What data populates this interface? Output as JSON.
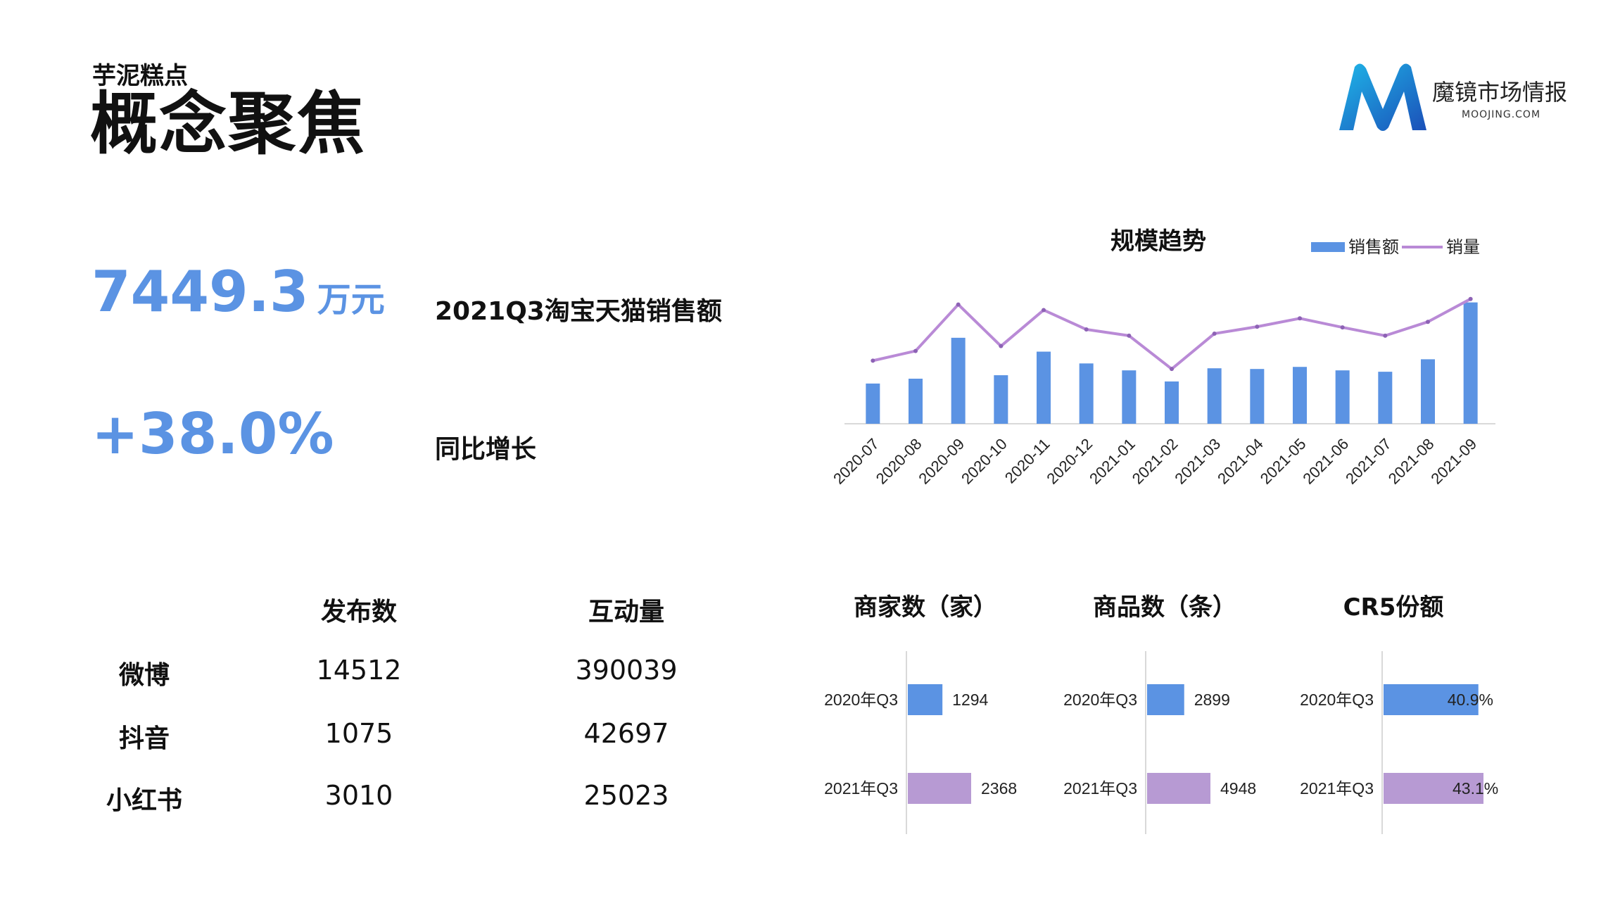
{
  "header": {
    "subtitle": "芋泥糕点",
    "title": "概念聚焦"
  },
  "logo": {
    "name": "魔镜市场情报",
    "domain": "MOOJING.COM"
  },
  "kpis": {
    "sales_value": "7449.3",
    "sales_unit": "万元",
    "sales_label": "2021Q3淘宝天猫销售额",
    "growth_value": "+38.0%",
    "growth_label": "同比增长"
  },
  "social_table": {
    "headers": [
      "发布数",
      "互动量"
    ],
    "rows": [
      {
        "platform": "微博",
        "posts": "14512",
        "interactions": "390039"
      },
      {
        "platform": "抖音",
        "posts": "1075",
        "interactions": "42697"
      },
      {
        "platform": "小红书",
        "posts": "3010",
        "interactions": "25023"
      }
    ]
  },
  "colors": {
    "blue": "#5b93e3",
    "purple": "#b79ad3",
    "line": "#b98ad6",
    "axis": "#d9d9d9"
  },
  "chart_data": [
    {
      "type": "bar",
      "title": "规模趋势",
      "categories": [
        "2020-07",
        "2020-08",
        "2020-09",
        "2020-10",
        "2020-11",
        "2020-12",
        "2021-01",
        "2021-02",
        "2021-03",
        "2021-04",
        "2021-05",
        "2021-06",
        "2021-07",
        "2021-08",
        "2021-09"
      ],
      "series": [
        {
          "name": "销售额",
          "kind": "bar",
          "values": [
            58,
            65,
            124,
            70,
            104,
            87,
            77,
            61,
            80,
            79,
            82,
            77,
            75,
            93,
            175
          ]
        },
        {
          "name": "销量",
          "kind": "line",
          "values": [
            91,
            105,
            172,
            112,
            164,
            136,
            127,
            79,
            130,
            140,
            152,
            139,
            127,
            147,
            180
          ]
        }
      ],
      "ylim": [
        0,
        200
      ],
      "legend": "top-right",
      "grid": false
    },
    {
      "type": "bar",
      "orientation": "horizontal",
      "title": "商家数（家）",
      "categories": [
        "2020年Q3",
        "2021年Q3"
      ],
      "values": [
        1294,
        2368
      ],
      "labels": [
        "1294",
        "2368"
      ]
    },
    {
      "type": "bar",
      "orientation": "horizontal",
      "title": "商品数（条）",
      "categories": [
        "2020年Q3",
        "2021年Q3"
      ],
      "values": [
        2899,
        4948
      ],
      "labels": [
        "2899",
        "4948"
      ]
    },
    {
      "type": "bar",
      "orientation": "horizontal",
      "title": "CR5份额",
      "categories": [
        "2020年Q3",
        "2021年Q3"
      ],
      "values": [
        40.9,
        43.1
      ],
      "labels": [
        "40.9%",
        "43.1%"
      ]
    }
  ]
}
